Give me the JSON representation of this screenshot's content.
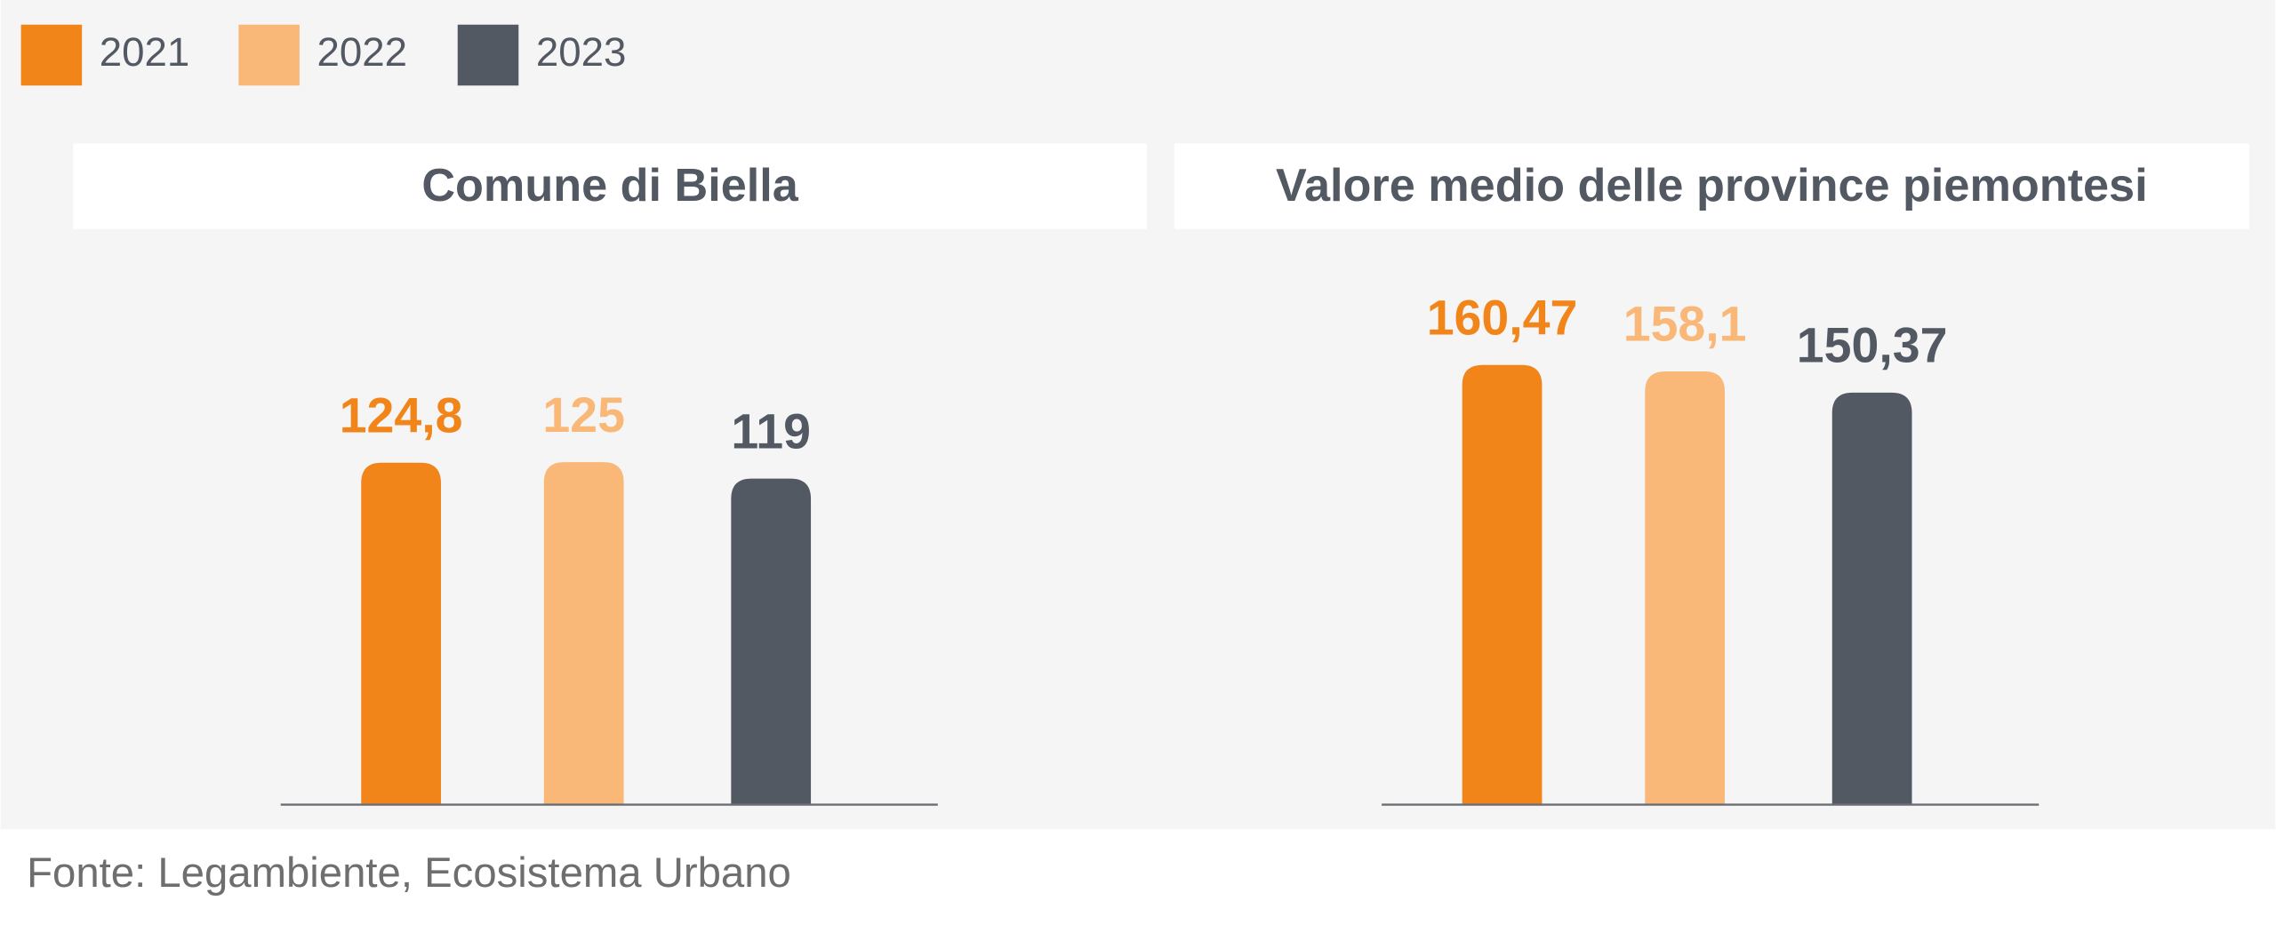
{
  "chart_data": [
    {
      "type": "bar",
      "title": "Comune di Biella",
      "categories": [
        null
      ],
      "ylim": [
        0,
        200
      ],
      "series": [
        {
          "name": "2021",
          "color": "#f28519",
          "values": [
            124.8
          ],
          "value_labels": [
            "124,8"
          ]
        },
        {
          "name": "2022",
          "color": "#f9b878",
          "values": [
            125
          ],
          "value_labels": [
            "125"
          ]
        },
        {
          "name": "2023",
          "color": "#525963",
          "values": [
            119
          ],
          "value_labels": [
            "119"
          ]
        }
      ]
    },
    {
      "type": "bar",
      "title": "Valore medio delle province piemontesi",
      "categories": [
        null
      ],
      "ylim": [
        0,
        200
      ],
      "series": [
        {
          "name": "2021",
          "color": "#f28519",
          "values": [
            160.47
          ],
          "value_labels": [
            "160,47"
          ]
        },
        {
          "name": "2022",
          "color": "#f9b878",
          "values": [
            158.1
          ],
          "value_labels": [
            "158,1"
          ]
        },
        {
          "name": "2023",
          "color": "#525963",
          "values": [
            150.37
          ],
          "value_labels": [
            "150,37"
          ]
        }
      ]
    }
  ],
  "source": "Fonte: Legambiente, Ecosistema Urbano"
}
